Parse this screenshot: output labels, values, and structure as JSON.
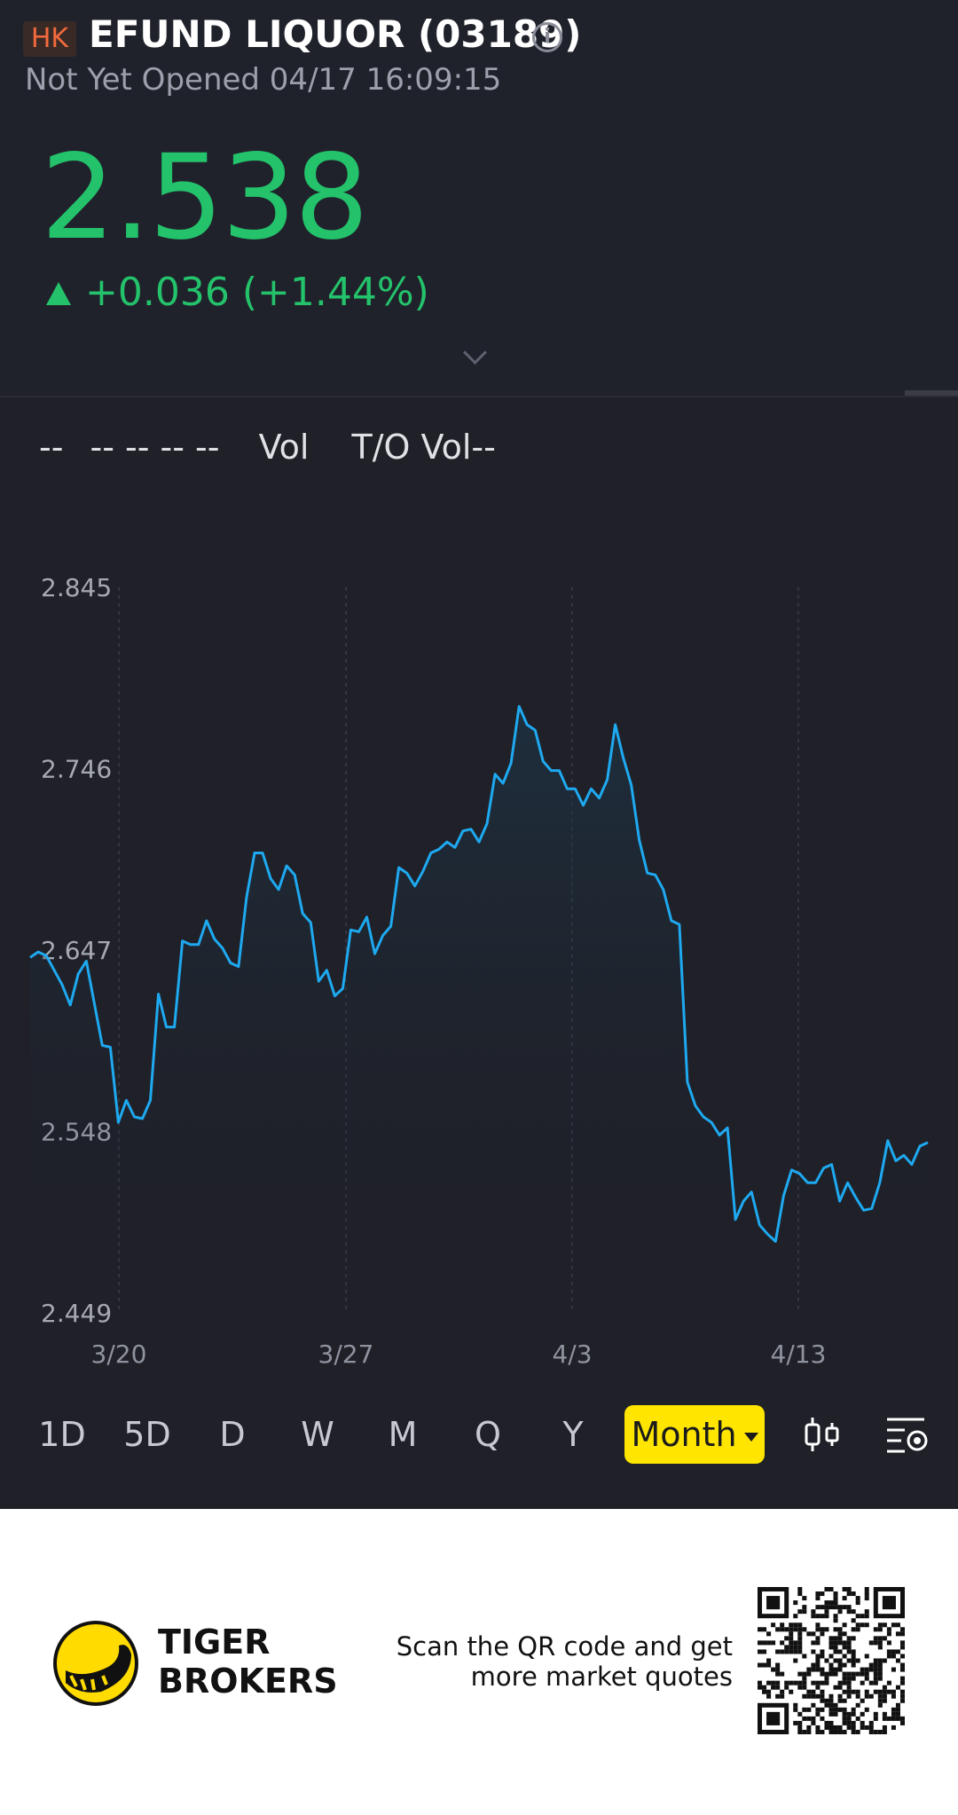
{
  "quote": {
    "market_badge": "HK",
    "name": "EFUND LIQUOR (03189)",
    "status": "Not Yet Opened 04/17 16:09:15",
    "price": "2.538",
    "change": "+0.036 (+1.44%)"
  },
  "indicators": {
    "dashes": [
      "--",
      "-- -- -- --"
    ],
    "vol_label": "Vol",
    "turnover_label": "T/O Vol--"
  },
  "periods": [
    "1D",
    "5D",
    "D",
    "W",
    "M",
    "Q",
    "Y"
  ],
  "active_period": "Month",
  "footer": {
    "brand_line1": "TIGER",
    "brand_line2": "BROKERS",
    "scan_line1": "Scan the QR code and get",
    "scan_line2": "more market quotes"
  },
  "colors": {
    "up": "#23c26b",
    "line": "#1ea9f0",
    "active_period": "#ffe500",
    "background": "#1f2028"
  },
  "icons": [
    "info-icon",
    "expand-icon",
    "candlestick-icon",
    "chart-settings-icon",
    "tiger-logo-icon",
    "qr-code-icon"
  ],
  "chart_data": {
    "type": "area",
    "x_ticks": [
      "3/20",
      "3/27",
      "4/3",
      "4/13"
    ],
    "y_ticks": [
      "2.845",
      "2.746",
      "2.647",
      "2.548",
      "2.449"
    ],
    "ylim": [
      2.449,
      2.845
    ],
    "grid": "vertical-dashed",
    "values": [
      2.643,
      2.646,
      2.644,
      2.636,
      2.628,
      2.617,
      2.634,
      2.641,
      2.618,
      2.595,
      2.594,
      2.553,
      2.565,
      2.556,
      2.555,
      2.565,
      2.623,
      2.605,
      2.605,
      2.652,
      2.65,
      2.65,
      2.663,
      2.653,
      2.648,
      2.64,
      2.638,
      2.676,
      2.7,
      2.7,
      2.686,
      2.68,
      2.693,
      2.688,
      2.667,
      2.662,
      2.63,
      2.636,
      2.622,
      2.626,
      2.658,
      2.657,
      2.665,
      2.645,
      2.655,
      2.66,
      2.692,
      2.689,
      2.682,
      2.69,
      2.7,
      2.702,
      2.706,
      2.703,
      2.712,
      2.713,
      2.706,
      2.716,
      2.743,
      2.738,
      2.749,
      2.78,
      2.77,
      2.767,
      2.75,
      2.745,
      2.745,
      2.735,
      2.735,
      2.726,
      2.735,
      2.73,
      2.74,
      2.77,
      2.752,
      2.737,
      2.707,
      2.689,
      2.688,
      2.68,
      2.663,
      2.661,
      2.575,
      2.562,
      2.556,
      2.553,
      2.546,
      2.55,
      2.5,
      2.51,
      2.515,
      2.497,
      2.492,
      2.488,
      2.513,
      2.527,
      2.525,
      2.52,
      2.52,
      2.528,
      2.53,
      2.51,
      2.52,
      2.512,
      2.505,
      2.506,
      2.52,
      2.543,
      2.532,
      2.535,
      2.53,
      2.54,
      2.542
    ]
  }
}
